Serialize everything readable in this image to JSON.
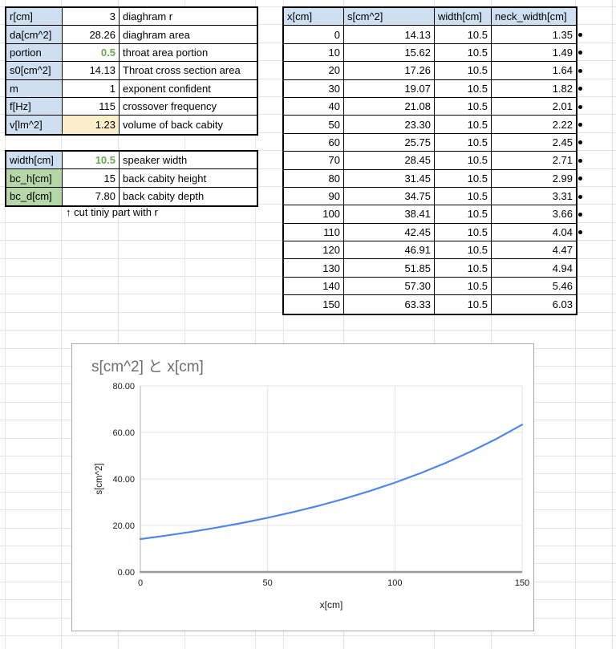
{
  "colors": {
    "header_blue": "#cddff0",
    "label_green": "#b5d6a6",
    "value_yellow": "#fbeecb",
    "green_text": "#6aa84f",
    "line_blue": "#4e86ec"
  },
  "left_panel": {
    "params": [
      {
        "label": "r[cm]",
        "value": "3",
        "desc": "diaghram r",
        "label_bg": "blue",
        "value_style": ""
      },
      {
        "label": "da[cm^2]",
        "value": "28.26",
        "desc": "diaghram area",
        "label_bg": "blue",
        "value_style": ""
      },
      {
        "label": "portion",
        "value": "0.5",
        "desc": "throat area portion",
        "label_bg": "blue",
        "value_style": "green-text"
      },
      {
        "label": "s0[cm^2]",
        "value": "14.13",
        "desc": "Throat cross section area",
        "label_bg": "blue",
        "value_style": ""
      },
      {
        "label": "m",
        "value": "1",
        "desc": "exponent confident",
        "label_bg": "blue",
        "value_style": ""
      },
      {
        "label": "f[Hz]",
        "value": "115",
        "desc": "crossover frequency",
        "label_bg": "blue",
        "value_style": ""
      },
      {
        "label": "v[lm^2]",
        "value": "1.23",
        "desc": "volume of back cabity",
        "label_bg": "blue",
        "value_style": "yellow-bg"
      }
    ],
    "dims": [
      {
        "label": "width[cm]",
        "value": "10.5",
        "desc": "speaker width",
        "label_bg": "blue",
        "value_style": "green-text"
      },
      {
        "label": "bc_h[cm]",
        "value": "15",
        "desc": "back cabity height",
        "label_bg": "green",
        "value_style": ""
      },
      {
        "label": "bc_d[cm]",
        "value": "7.80",
        "desc": "back cabity depth",
        "label_bg": "green",
        "value_style": ""
      }
    ],
    "note": "↑ cut tiniy part with r"
  },
  "data_table": {
    "headers": [
      "x[cm]",
      "s[cm^2]",
      "width[cm]",
      "neck_width[cm]"
    ],
    "rows": [
      {
        "x": "0",
        "s": "14.13",
        "width": "10.5",
        "neck": "1.35",
        "marker": true
      },
      {
        "x": "10",
        "s": "15.62",
        "width": "10.5",
        "neck": "1.49",
        "marker": true
      },
      {
        "x": "20",
        "s": "17.26",
        "width": "10.5",
        "neck": "1.64",
        "marker": true
      },
      {
        "x": "30",
        "s": "19.07",
        "width": "10.5",
        "neck": "1.82",
        "marker": true
      },
      {
        "x": "40",
        "s": "21.08",
        "width": "10.5",
        "neck": "2.01",
        "marker": true
      },
      {
        "x": "50",
        "s": "23.30",
        "width": "10.5",
        "neck": "2.22",
        "marker": true
      },
      {
        "x": "60",
        "s": "25.75",
        "width": "10.5",
        "neck": "2.45",
        "marker": true
      },
      {
        "x": "70",
        "s": "28.45",
        "width": "10.5",
        "neck": "2.71",
        "marker": true
      },
      {
        "x": "80",
        "s": "31.45",
        "width": "10.5",
        "neck": "2.99",
        "marker": true
      },
      {
        "x": "90",
        "s": "34.75",
        "width": "10.5",
        "neck": "3.31",
        "marker": true
      },
      {
        "x": "100",
        "s": "38.41",
        "width": "10.5",
        "neck": "3.66",
        "marker": true
      },
      {
        "x": "110",
        "s": "42.45",
        "width": "10.5",
        "neck": "4.04",
        "marker": true
      },
      {
        "x": "120",
        "s": "46.91",
        "width": "10.5",
        "neck": "4.47",
        "marker": false
      },
      {
        "x": "130",
        "s": "51.85",
        "width": "10.5",
        "neck": "4.94",
        "marker": false
      },
      {
        "x": "140",
        "s": "57.30",
        "width": "10.5",
        "neck": "5.46",
        "marker": false
      },
      {
        "x": "150",
        "s": "63.33",
        "width": "10.5",
        "neck": "6.03",
        "marker": false
      }
    ]
  },
  "chart_data": {
    "type": "line",
    "title": "s[cm^2] と x[cm]",
    "xlabel": "x[cm]",
    "ylabel": "s[cm^2]",
    "x": [
      0,
      10,
      20,
      30,
      40,
      50,
      60,
      70,
      80,
      90,
      100,
      110,
      120,
      130,
      140,
      150
    ],
    "series": [
      {
        "name": "s[cm^2]",
        "values": [
          14.13,
          15.62,
          17.26,
          19.07,
          21.08,
          23.3,
          25.75,
          28.45,
          31.45,
          34.75,
          38.41,
          42.45,
          46.91,
          51.85,
          57.3,
          63.33
        ]
      }
    ],
    "xlim": [
      0,
      150
    ],
    "ylim": [
      0,
      80
    ],
    "xticks": [
      "0",
      "50",
      "100",
      "150"
    ],
    "yticks": [
      "0.00",
      "20.00",
      "40.00",
      "60.00",
      "80.00"
    ],
    "grid": true,
    "legend": "none",
    "line_color": "#4e86ec"
  }
}
